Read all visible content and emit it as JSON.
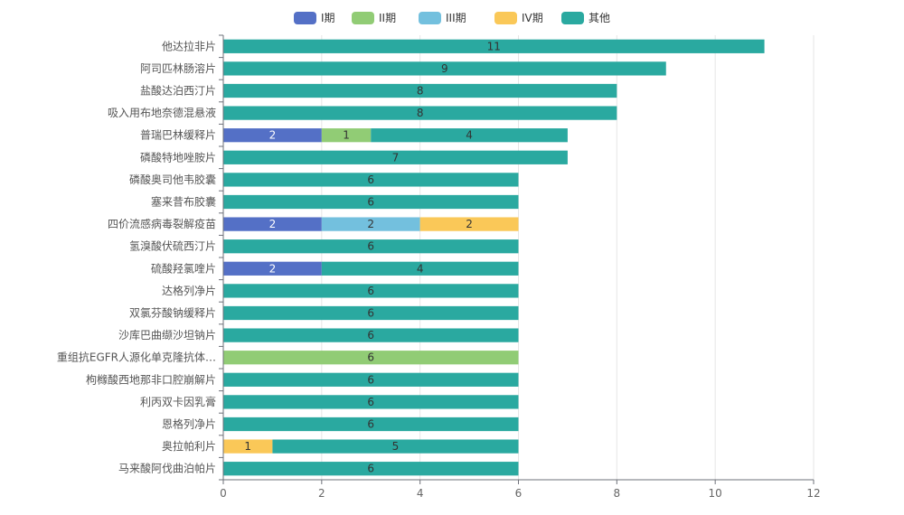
{
  "chart_data": {
    "type": "bar",
    "orientation": "horizontal",
    "stacked": true,
    "title": "",
    "xlabel": "",
    "ylabel": "",
    "xlim": [
      0,
      12
    ],
    "x_ticks": [
      0,
      2,
      4,
      6,
      8,
      10,
      12
    ],
    "grid": true,
    "legend_position": "top-center",
    "categories": [
      "他达拉非片",
      "阿司匹林肠溶片",
      "盐酸达泊西汀片",
      "吸入用布地奈德混悬液",
      "普瑞巴林缓释片",
      "磷酸特地唑胺片",
      "磷酸奥司他韦胶囊",
      "塞来昔布胶囊",
      "四价流感病毒裂解疫苗",
      "氢溴酸伏硫西汀片",
      "硫酸羟氯喹片",
      "达格列净片",
      "双氯芬酸钠缓释片",
      "沙库巴曲缬沙坦钠片",
      "重组抗EGFR人源化单克隆抗体…",
      "枸橼酸西地那非口腔崩解片",
      "利丙双卡因乳膏",
      "恩格列净片",
      "奥拉帕利片",
      "马来酸阿伐曲泊帕片"
    ],
    "series": [
      {
        "name": "I期",
        "color": "#5470c6",
        "label_color": "#ffffff",
        "values": [
          0,
          0,
          0,
          0,
          2,
          0,
          0,
          0,
          2,
          0,
          2,
          0,
          0,
          0,
          0,
          0,
          0,
          0,
          0,
          0
        ]
      },
      {
        "name": "II期",
        "color": "#91cc75",
        "label_color": "#333333",
        "values": [
          0,
          0,
          0,
          0,
          1,
          0,
          0,
          0,
          0,
          0,
          0,
          0,
          0,
          0,
          6,
          0,
          0,
          0,
          0,
          0
        ]
      },
      {
        "name": "III期",
        "color": "#73c0de",
        "label_color": "#333333",
        "values": [
          0,
          0,
          0,
          0,
          0,
          0,
          0,
          0,
          2,
          0,
          0,
          0,
          0,
          0,
          0,
          0,
          0,
          0,
          0,
          0
        ]
      },
      {
        "name": "IV期",
        "color": "#fac858",
        "label_color": "#333333",
        "values": [
          0,
          0,
          0,
          0,
          0,
          0,
          0,
          0,
          2,
          0,
          0,
          0,
          0,
          0,
          0,
          0,
          0,
          0,
          1,
          0
        ]
      },
      {
        "name": "其他",
        "color": "#2aa9a0",
        "label_color": "#333333",
        "values": [
          11,
          9,
          8,
          8,
          4,
          7,
          6,
          6,
          0,
          6,
          4,
          6,
          6,
          6,
          0,
          6,
          6,
          6,
          5,
          6
        ]
      }
    ]
  }
}
